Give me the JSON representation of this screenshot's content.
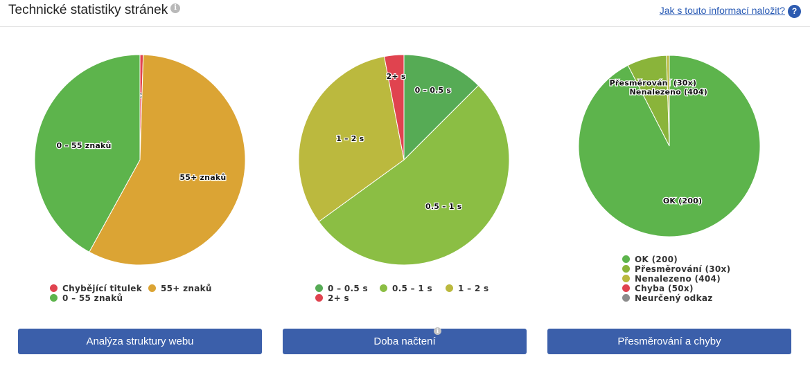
{
  "header": {
    "title": "Technické statistiky stránek",
    "title_info_icon": "info-icon",
    "help_link": "Jak s touto informací naložit?",
    "help_icon": "question-icon"
  },
  "chart_data": [
    {
      "type": "pie",
      "slices": [
        {
          "label": "Chybějící titulek",
          "value": 0.5,
          "color": "#e0434f"
        },
        {
          "label": "55+ znaků",
          "value": 57.5,
          "color": "#dba434"
        },
        {
          "label": "0 – 55 znaků",
          "value": 42,
          "color": "#5db44c"
        }
      ],
      "legend": {
        "placement": "bottom",
        "rows": [
          [
            "Chybějící titulek",
            "55+ znaků"
          ],
          [
            "0 – 55 znaků"
          ]
        ]
      }
    },
    {
      "type": "pie",
      "slices": [
        {
          "label": "0 – 0.5 s",
          "value": 12.5,
          "color": "#56ab55"
        },
        {
          "label": "0.5 – 1 s",
          "value": 52.5,
          "color": "#8bbe44"
        },
        {
          "label": "1 – 2 s",
          "value": 32,
          "color": "#bbb93e"
        },
        {
          "label": "2+ s",
          "value": 3,
          "color": "#e0434f"
        }
      ],
      "legend": {
        "placement": "bottom",
        "rows": [
          [
            "0 – 0.5 s",
            "0.5 – 1 s",
            "1 – 2 s"
          ],
          [
            "2+ s"
          ]
        ]
      }
    },
    {
      "type": "pie",
      "slices": [
        {
          "label": "OK (200)",
          "value": 92,
          "color": "#5db44c"
        },
        {
          "label": "Přesměrování (30x)",
          "value": 7,
          "color": "#8ab43a"
        },
        {
          "label": "Nenalezeno (404)",
          "value": 0.5,
          "color": "#bbb93e"
        },
        {
          "label": "Chyba (50x)",
          "value": 0,
          "color": "#e0434f"
        },
        {
          "label": "Neurčený odkaz",
          "value": 0,
          "color": "#8c8c8c"
        }
      ],
      "legend": {
        "placement": "bottom",
        "rows": [
          [
            "OK (200)"
          ],
          [
            "Přesměrování (30x)"
          ],
          [
            "Nenalezeno (404)"
          ],
          [
            "Chyba (50x)"
          ],
          [
            "Neurčený odkaz"
          ]
        ]
      }
    }
  ],
  "buttons": {
    "structure": "Analýza struktury webu",
    "load_time": "Doba načtení",
    "redirects": "Přesměrování a chyby"
  }
}
